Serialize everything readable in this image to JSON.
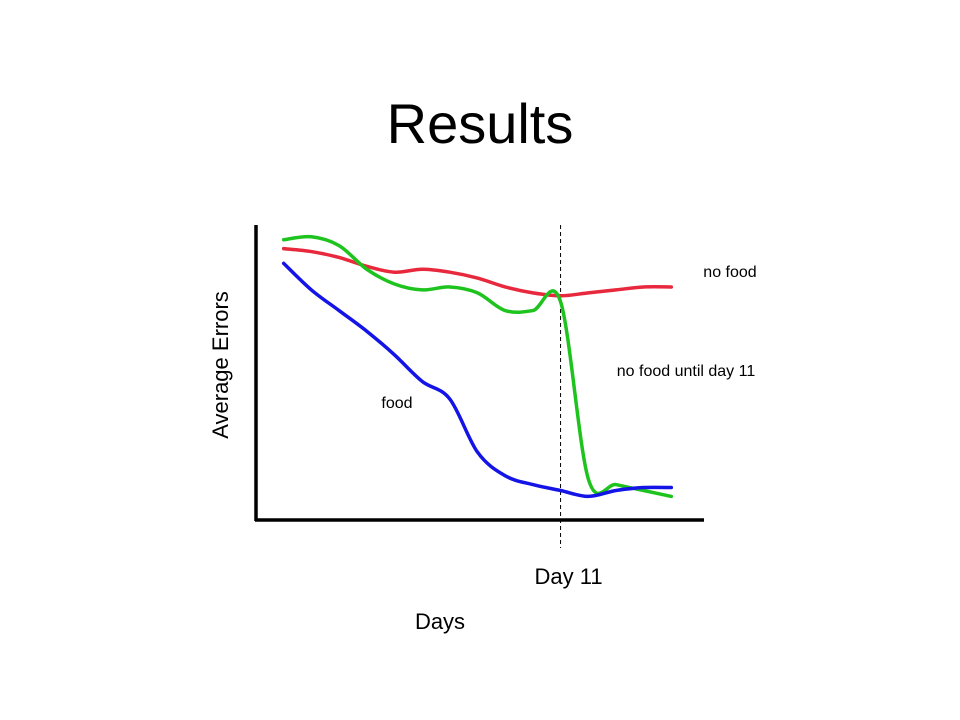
{
  "chart_data": {
    "type": "line",
    "title": "Results",
    "x_label": "Days",
    "y_label": "Average Errors",
    "x": [
      1,
      2,
      3,
      4,
      5,
      6,
      7,
      8,
      9,
      10,
      11,
      12,
      13,
      14,
      15
    ],
    "xlim": [
      0,
      16
    ],
    "xticks": [
      {
        "value": 11,
        "label": "Day 11"
      }
    ],
    "ylim": [
      0,
      10
    ],
    "series": [
      {
        "name": "no food",
        "color": "#e8283c",
        "values": [
          9.2,
          9.1,
          8.9,
          8.6,
          8.4,
          8.5,
          8.4,
          8.2,
          7.9,
          7.7,
          7.6,
          7.7,
          7.8,
          7.9,
          7.9
        ]
      },
      {
        "name": "no food until day 11",
        "color": "#1ec31e",
        "values": [
          9.5,
          9.6,
          9.3,
          8.5,
          8.0,
          7.8,
          7.9,
          7.7,
          7.1,
          7.1,
          7.4,
          1.4,
          1.2,
          1.0,
          0.8
        ]
      },
      {
        "name": "food",
        "color": "#1414e6",
        "values": [
          8.7,
          7.8,
          7.1,
          6.4,
          5.6,
          4.7,
          4.1,
          2.3,
          1.5,
          1.2,
          1.0,
          0.8,
          1.0,
          1.1,
          1.1
        ]
      }
    ]
  }
}
